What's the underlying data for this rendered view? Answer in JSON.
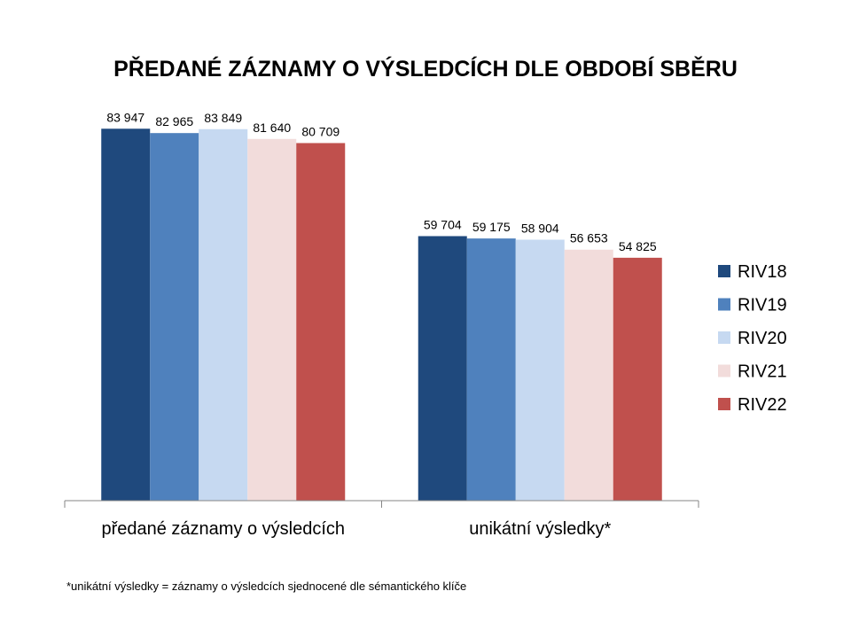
{
  "chart_data": {
    "type": "bar",
    "title": "PŘEDANÉ ZÁZNAMY O VÝSLEDCÍCH DLE OBDOBÍ SBĚRU",
    "categories": [
      "předané záznamy o výsledcích",
      "unikátní výsledky*"
    ],
    "series": [
      {
        "name": "RIV18",
        "values": [
          83947,
          59704
        ],
        "labels": [
          "83 947",
          "59 704"
        ],
        "color": "#1F497D"
      },
      {
        "name": "RIV19",
        "values": [
          82965,
          59175
        ],
        "labels": [
          "82 965",
          "59 175"
        ],
        "color": "#4F81BD"
      },
      {
        "name": "RIV20",
        "values": [
          83849,
          58904
        ],
        "labels": [
          "83 849",
          "58 904"
        ],
        "color": "#C6D9F1"
      },
      {
        "name": "RIV21",
        "values": [
          81640,
          56653
        ],
        "labels": [
          "81 640",
          "56 653"
        ],
        "color": "#F2DCDB"
      },
      {
        "name": "RIV22",
        "values": [
          80709,
          54825
        ],
        "labels": [
          "80 709",
          "54 825"
        ],
        "color": "#C0504D"
      }
    ],
    "ylim": [
      0,
      100000
    ],
    "grid": false,
    "legend": "right",
    "footnote": "*unikátní výsledky = záznamy o výsledcích sjednocené  dle sémantického klíče"
  }
}
